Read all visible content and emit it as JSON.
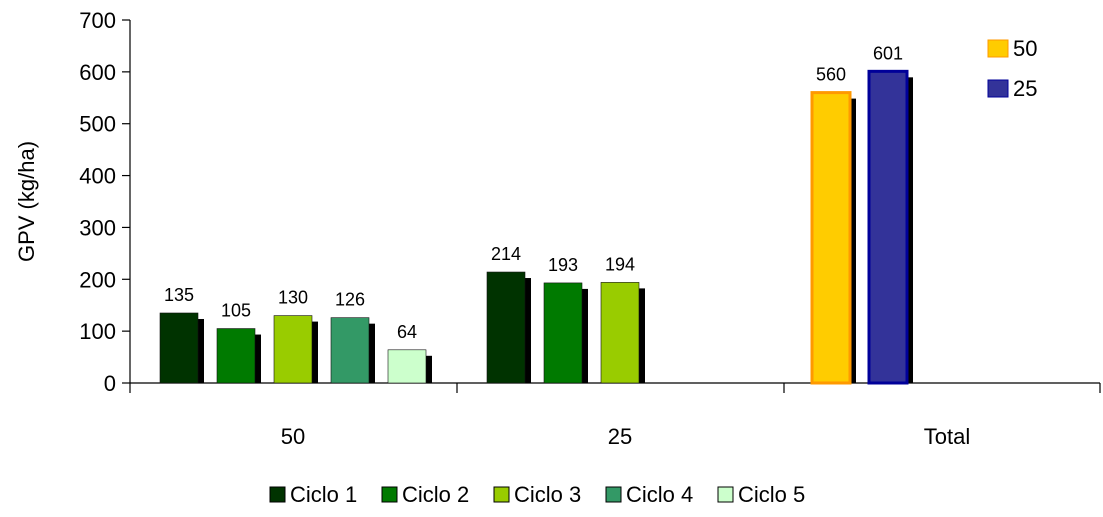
{
  "chart_data": {
    "type": "bar",
    "ylabel": "GPV (kg/ha)",
    "ylim": [
      0,
      700
    ],
    "yticks": [
      0,
      100,
      200,
      300,
      400,
      500,
      600,
      700
    ],
    "categories": [
      "50",
      "25",
      "Total"
    ],
    "series": [
      {
        "name": "Ciclo 1",
        "color": "#003300",
        "values": [
          135,
          214,
          null
        ]
      },
      {
        "name": "Ciclo 2",
        "color": "#007A00",
        "values": [
          105,
          193,
          null
        ]
      },
      {
        "name": "Ciclo 3",
        "color": "#99CC00",
        "values": [
          130,
          194,
          null
        ]
      },
      {
        "name": "Ciclo 4",
        "color": "#339966",
        "values": [
          126,
          null,
          null
        ]
      },
      {
        "name": "Ciclo 5",
        "color": "#CCFFCC",
        "values": [
          64,
          null,
          null
        ]
      },
      {
        "name": "50",
        "color": "#FFCC00",
        "border": "#FF9900",
        "values": [
          null,
          null,
          560
        ]
      },
      {
        "name": "25",
        "color": "#333399",
        "border": "#000099",
        "values": [
          null,
          null,
          601
        ]
      }
    ],
    "legend_bottom": [
      "Ciclo 1",
      "Ciclo 2",
      "Ciclo 3",
      "Ciclo 4",
      "Ciclo 5"
    ],
    "legend_top_right": [
      "50",
      "25"
    ],
    "grid": false
  }
}
